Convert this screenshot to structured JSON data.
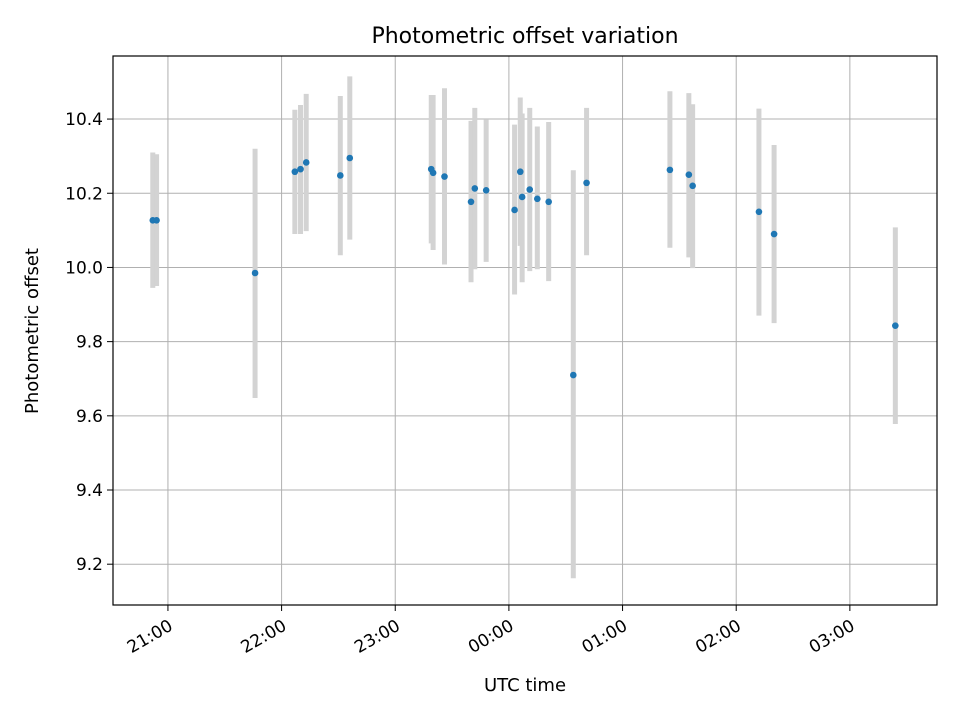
{
  "chart_data": {
    "type": "scatter",
    "title": "Photometric offset variation",
    "xlabel": "UTC time",
    "ylabel": "Photometric offset",
    "x_axis_kind": "time",
    "xlim": [
      "20:31",
      "03:46"
    ],
    "ylim": [
      9.09,
      10.57
    ],
    "grid": true,
    "legend": "none",
    "x_ticks": [
      "21:00",
      "22:00",
      "23:00",
      "00:00",
      "01:00",
      "02:00",
      "03:00"
    ],
    "y_ticks": [
      "9.2",
      "9.4",
      "9.6",
      "9.8",
      "10.0",
      "10.2",
      "10.4"
    ],
    "colors": {
      "marker": "#1f77b4",
      "error_bar": "#d3d3d3",
      "grid": "#b0b0b0"
    },
    "series": [
      {
        "points": [
          {
            "x": "20:52",
            "y": 10.127,
            "lo": 9.945,
            "hi": 10.31
          },
          {
            "x": "20:54",
            "y": 10.127,
            "lo": 9.95,
            "hi": 10.305
          },
          {
            "x": "21:46",
            "y": 9.985,
            "lo": 9.648,
            "hi": 10.32
          },
          {
            "x": "22:07",
            "y": 10.258,
            "lo": 10.09,
            "hi": 10.425
          },
          {
            "x": "22:10",
            "y": 10.265,
            "lo": 10.09,
            "hi": 10.438
          },
          {
            "x": "22:13",
            "y": 10.283,
            "lo": 10.098,
            "hi": 10.468
          },
          {
            "x": "22:31",
            "y": 10.248,
            "lo": 10.033,
            "hi": 10.462
          },
          {
            "x": "22:36",
            "y": 10.295,
            "lo": 10.075,
            "hi": 10.515
          },
          {
            "x": "23:19",
            "y": 10.265,
            "lo": 10.065,
            "hi": 10.465
          },
          {
            "x": "23:20",
            "y": 10.255,
            "lo": 10.047,
            "hi": 10.465
          },
          {
            "x": "23:26",
            "y": 10.245,
            "lo": 10.008,
            "hi": 10.483
          },
          {
            "x": "23:40",
            "y": 10.177,
            "lo": 9.96,
            "hi": 10.395
          },
          {
            "x": "23:42",
            "y": 10.213,
            "lo": 9.995,
            "hi": 10.43
          },
          {
            "x": "23:48",
            "y": 10.208,
            "lo": 10.015,
            "hi": 10.398
          },
          {
            "x": "00:03",
            "y": 10.155,
            "lo": 9.927,
            "hi": 10.385
          },
          {
            "x": "00:06",
            "y": 10.258,
            "lo": 10.058,
            "hi": 10.458
          },
          {
            "x": "00:07",
            "y": 10.19,
            "lo": 9.96,
            "hi": 10.415
          },
          {
            "x": "00:11",
            "y": 10.21,
            "lo": 9.99,
            "hi": 10.43
          },
          {
            "x": "00:15",
            "y": 10.185,
            "lo": 9.995,
            "hi": 10.38
          },
          {
            "x": "00:21",
            "y": 10.177,
            "lo": 9.963,
            "hi": 10.392
          },
          {
            "x": "00:34",
            "y": 9.71,
            "lo": 9.162,
            "hi": 10.262
          },
          {
            "x": "00:41",
            "y": 10.228,
            "lo": 10.033,
            "hi": 10.43
          },
          {
            "x": "01:25",
            "y": 10.263,
            "lo": 10.053,
            "hi": 10.475
          },
          {
            "x": "01:35",
            "y": 10.25,
            "lo": 10.027,
            "hi": 10.47
          },
          {
            "x": "01:37",
            "y": 10.22,
            "lo": 9.998,
            "hi": 10.44
          },
          {
            "x": "02:12",
            "y": 10.15,
            "lo": 9.87,
            "hi": 10.428
          },
          {
            "x": "02:20",
            "y": 10.09,
            "lo": 9.85,
            "hi": 10.33
          },
          {
            "x": "03:24",
            "y": 9.843,
            "lo": 9.578,
            "hi": 10.108
          }
        ]
      }
    ]
  }
}
